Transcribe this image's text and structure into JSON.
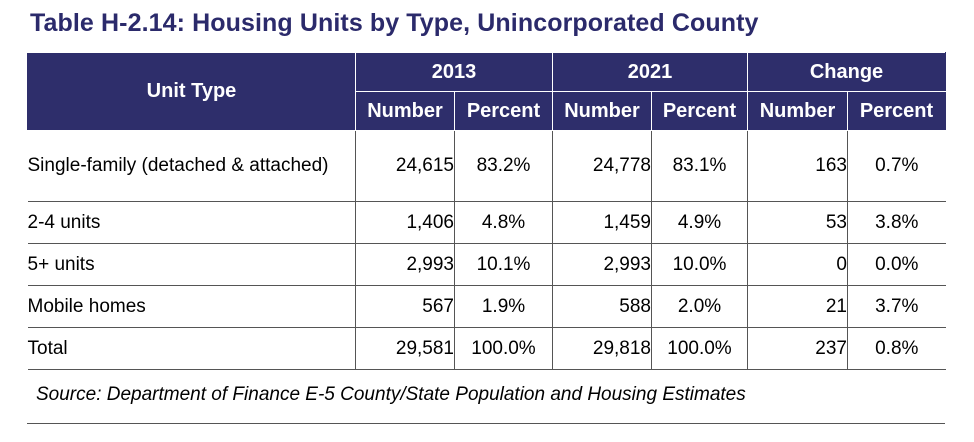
{
  "title": "Table H-2.14: Housing Units by Type, Unincorporated County",
  "header": {
    "unit_type": "Unit Type",
    "groups": [
      "2013",
      "2021",
      "Change"
    ],
    "sub": [
      "Number",
      "Percent",
      "Number",
      "Percent",
      "Number",
      "Percent"
    ]
  },
  "rows": [
    {
      "type": "Single-family (detached & attached)",
      "n2013": "24,615",
      "p2013": "83.2%",
      "n2021": "24,778",
      "p2021": "83.1%",
      "nchg": "163",
      "pchg": "0.7%"
    },
    {
      "type": "2-4 units",
      "n2013": "1,406",
      "p2013": "4.8%",
      "n2021": "1,459",
      "p2021": "4.9%",
      "nchg": "53",
      "pchg": "3.8%"
    },
    {
      "type": "5+ units",
      "n2013": "2,993",
      "p2013": "10.1%",
      "n2021": "2,993",
      "p2021": "10.0%",
      "nchg": "0",
      "pchg": "0.0%"
    },
    {
      "type": "Mobile homes",
      "n2013": "567",
      "p2013": "1.9%",
      "n2021": "588",
      "p2021": "2.0%",
      "nchg": "21",
      "pchg": "3.7%"
    },
    {
      "type": "Total",
      "n2013": "29,581",
      "p2013": "100.0%",
      "n2021": "29,818",
      "p2021": "100.0%",
      "nchg": "237",
      "pchg": "0.8%"
    }
  ],
  "source": "Source: Department of Finance E-5 County/State Population and Housing Estimates",
  "colors": {
    "header_bg": "#2e2e6b",
    "title": "#2b2a6b"
  }
}
